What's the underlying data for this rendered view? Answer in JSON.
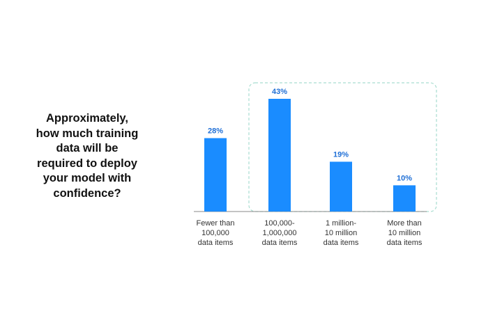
{
  "question": {
    "lines": [
      "Approximately,",
      "how much training",
      "data will be",
      "required to deploy",
      "your model with",
      "confidence?"
    ]
  },
  "colors": {
    "bar": "#1a8cff",
    "data_label": "#1f6fd6",
    "highlight_border": "#a8ddd0",
    "axis": "#888888"
  },
  "chart_data": {
    "type": "bar",
    "categories": [
      [
        "Fewer than",
        "100,000",
        "data items"
      ],
      [
        "100,000-",
        "1,000,000",
        "data items"
      ],
      [
        "1 million-",
        "10 million",
        "data items"
      ],
      [
        "More than",
        "10 million",
        "data items"
      ]
    ],
    "values": [
      28,
      43,
      19,
      10
    ],
    "data_labels": [
      "28%",
      "43%",
      "19%",
      "10%"
    ],
    "unit": "%",
    "ylim": [
      0,
      43
    ],
    "highlighted_categories": [
      1,
      2,
      3
    ],
    "grid": false,
    "legend": "none"
  }
}
